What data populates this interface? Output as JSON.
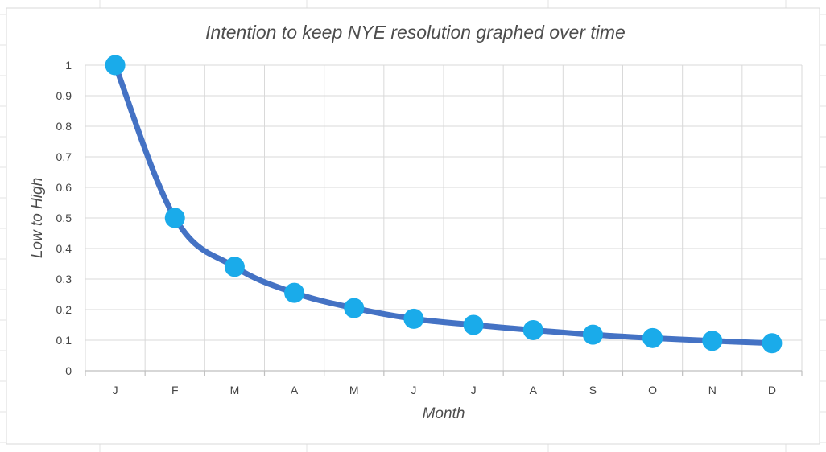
{
  "chart_data": {
    "type": "line",
    "title": "Intention to keep NYE resolution graphed over time",
    "xlabel": "Month",
    "ylabel": "Low to High",
    "categories": [
      "J",
      "F",
      "M",
      "A",
      "M",
      "J",
      "J",
      "A",
      "S",
      "O",
      "N",
      "D"
    ],
    "series": [
      {
        "values": [
          1.0,
          0.5,
          0.34,
          0.255,
          0.205,
          0.17,
          0.15,
          0.133,
          0.118,
          0.107,
          0.098,
          0.09
        ]
      }
    ],
    "ylim": [
      0,
      1
    ],
    "yticks": [
      "0",
      "0.1",
      "0.2",
      "0.3",
      "0.4",
      "0.5",
      "0.6",
      "0.7",
      "0.8",
      "0.9",
      "1"
    ],
    "grid": true,
    "smooth": true,
    "colors": {
      "line": "#4472c4",
      "marker": "#1aabea",
      "grid": "#d9d9d9",
      "axis": "#bfbfbf"
    }
  }
}
